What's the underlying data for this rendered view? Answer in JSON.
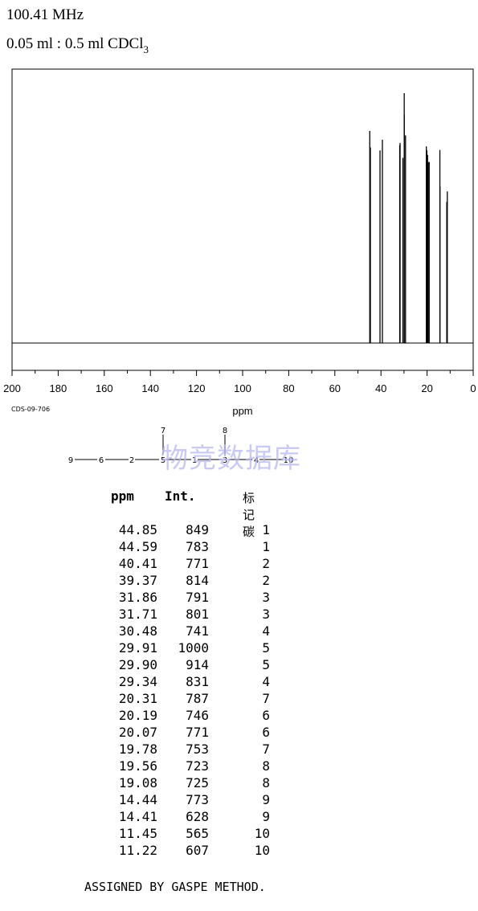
{
  "header": {
    "frequency": "100.41 MHz",
    "concentration_main": "0.05 ml : 0.5 ml CDCl",
    "concentration_sub": "3"
  },
  "chart_data": {
    "type": "bar",
    "title": "",
    "xlabel": "ppm",
    "ylabel": "",
    "xlim": [
      200,
      0
    ],
    "x_reversed": true,
    "ylim": [
      0,
      1000
    ],
    "x_ticks": [
      "200",
      "180",
      "160",
      "140",
      "120",
      "100",
      "80",
      "60",
      "40",
      "20",
      "0"
    ],
    "peaks": [
      {
        "ppm": 44.85,
        "intensity": 849
      },
      {
        "ppm": 44.59,
        "intensity": 783
      },
      {
        "ppm": 40.41,
        "intensity": 771
      },
      {
        "ppm": 39.37,
        "intensity": 814
      },
      {
        "ppm": 31.86,
        "intensity": 791
      },
      {
        "ppm": 31.71,
        "intensity": 801
      },
      {
        "ppm": 30.48,
        "intensity": 741
      },
      {
        "ppm": 29.91,
        "intensity": 1000
      },
      {
        "ppm": 29.9,
        "intensity": 914
      },
      {
        "ppm": 29.34,
        "intensity": 831
      },
      {
        "ppm": 20.31,
        "intensity": 787
      },
      {
        "ppm": 20.19,
        "intensity": 746
      },
      {
        "ppm": 20.07,
        "intensity": 771
      },
      {
        "ppm": 19.78,
        "intensity": 753
      },
      {
        "ppm": 19.56,
        "intensity": 723
      },
      {
        "ppm": 19.08,
        "intensity": 725
      },
      {
        "ppm": 14.44,
        "intensity": 773
      },
      {
        "ppm": 14.41,
        "intensity": 628
      },
      {
        "ppm": 11.45,
        "intensity": 565
      },
      {
        "ppm": 11.22,
        "intensity": 607
      }
    ],
    "grid": false,
    "legend": "none"
  },
  "code": "CDS-09-706",
  "structure": {
    "chain_labels": [
      "9",
      "6",
      "2",
      "5",
      "1",
      "3",
      "4",
      "10"
    ],
    "branch_labels": [
      "7",
      "8"
    ]
  },
  "watermark": "物竞数据库",
  "table": {
    "headers": {
      "ppm": "ppm",
      "int": "Int.",
      "carbon": "标记碳"
    },
    "rows": [
      {
        "ppm": "44.85",
        "int": "849",
        "carbon": "1"
      },
      {
        "ppm": "44.59",
        "int": "783",
        "carbon": "1"
      },
      {
        "ppm": "40.41",
        "int": "771",
        "carbon": "2"
      },
      {
        "ppm": "39.37",
        "int": "814",
        "carbon": "2"
      },
      {
        "ppm": "31.86",
        "int": "791",
        "carbon": "3"
      },
      {
        "ppm": "31.71",
        "int": "801",
        "carbon": "3"
      },
      {
        "ppm": "30.48",
        "int": "741",
        "carbon": "4"
      },
      {
        "ppm": "29.91",
        "int": "1000",
        "carbon": "5"
      },
      {
        "ppm": "29.90",
        "int": "914",
        "carbon": "5"
      },
      {
        "ppm": "29.34",
        "int": "831",
        "carbon": "4"
      },
      {
        "ppm": "20.31",
        "int": "787",
        "carbon": "7"
      },
      {
        "ppm": "20.19",
        "int": "746",
        "carbon": "6"
      },
      {
        "ppm": "20.07",
        "int": "771",
        "carbon": "6"
      },
      {
        "ppm": "19.78",
        "int": "753",
        "carbon": "7"
      },
      {
        "ppm": "19.56",
        "int": "723",
        "carbon": "8"
      },
      {
        "ppm": "19.08",
        "int": "725",
        "carbon": "8"
      },
      {
        "ppm": "14.44",
        "int": "773",
        "carbon": "9"
      },
      {
        "ppm": "14.41",
        "int": "628",
        "carbon": "9"
      },
      {
        "ppm": "11.45",
        "int": "565",
        "carbon": "10"
      },
      {
        "ppm": "11.22",
        "int": "607",
        "carbon": "10"
      }
    ]
  },
  "footer": "ASSIGNED BY GASPE METHOD."
}
